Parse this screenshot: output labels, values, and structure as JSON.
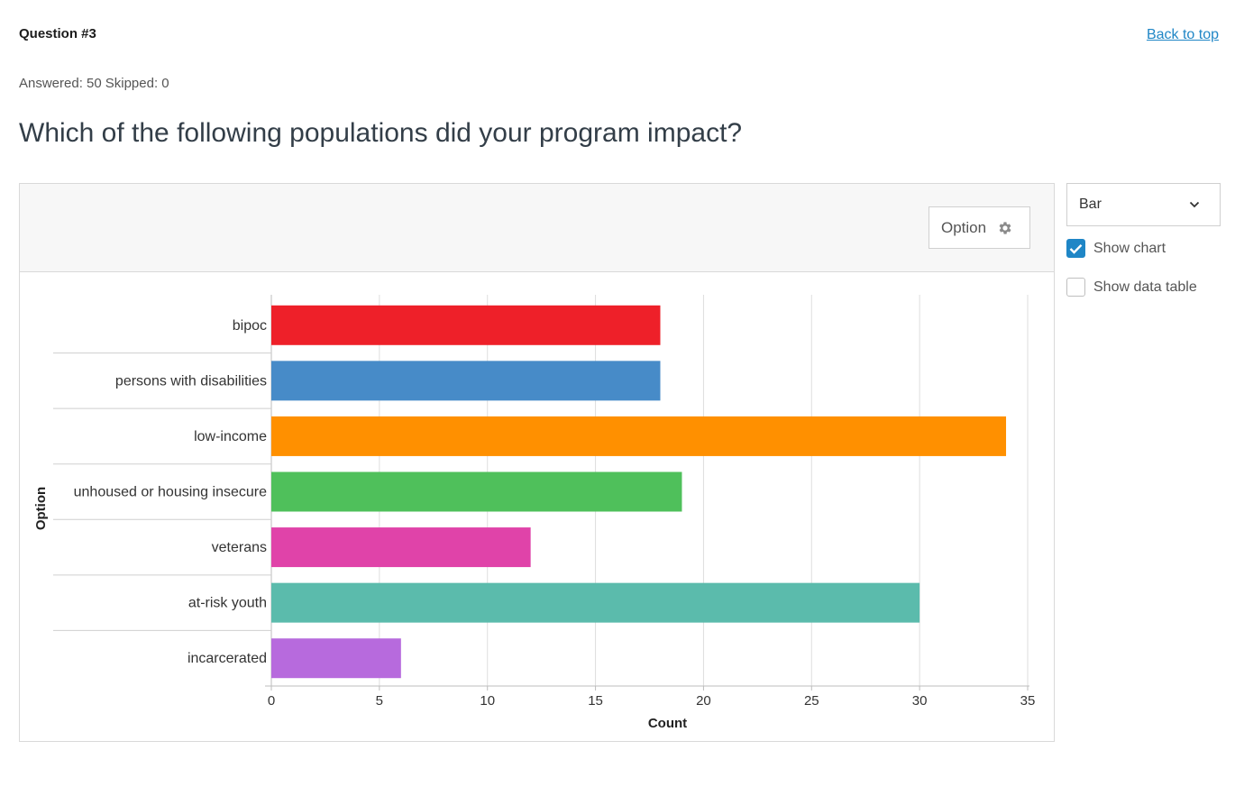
{
  "header": {
    "question_number": "Question #3",
    "back_to_top": "Back to top",
    "answered_label": "Answered: 50",
    "skipped_label": "Skipped: 0",
    "question_text": "Which of the following populations did your program impact?"
  },
  "panel": {
    "option_button_label": "Option"
  },
  "sidebar": {
    "chart_type": "Bar",
    "show_chart_label": "Show chart",
    "show_chart_checked": true,
    "show_data_table_label": "Show data table",
    "show_data_table_checked": false
  },
  "chart_data": {
    "type": "bar",
    "orientation": "horizontal",
    "title": "",
    "xlabel": "Count",
    "ylabel": "Option",
    "xlim": [
      0,
      35
    ],
    "xticks": [
      0,
      5,
      10,
      15,
      20,
      25,
      30,
      35
    ],
    "grid": true,
    "categories": [
      "bipoc",
      "persons with disabilities",
      "low-income",
      "unhoused or housing insecure",
      "veterans",
      "at-risk youth",
      "incarcerated"
    ],
    "values": [
      18,
      18,
      34,
      19,
      12,
      30,
      6
    ],
    "colors": [
      "#ee2029",
      "#478bc8",
      "#ff9000",
      "#4fc05b",
      "#e043a9",
      "#5bbbac",
      "#b76add"
    ]
  }
}
